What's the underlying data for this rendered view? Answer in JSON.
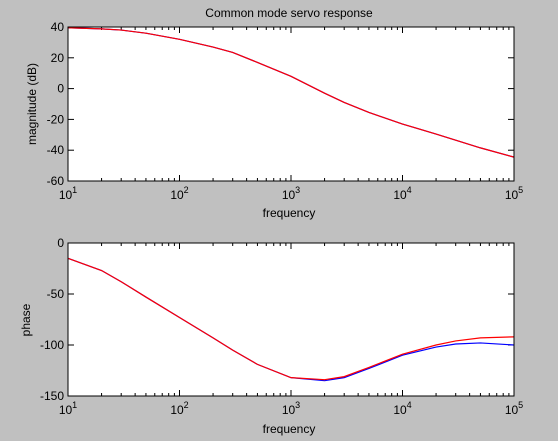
{
  "colors": {
    "background": "#c0c0c0",
    "axes": "#ffffff",
    "series_blue": "#0000ff",
    "series_red": "#ff0000"
  },
  "chart_data": [
    {
      "type": "line",
      "title": "Common mode servo response",
      "xlabel": "frequency",
      "ylabel": "magnitude (dB)",
      "xscale": "log",
      "xlim": [
        10,
        100000
      ],
      "ylim": [
        -60,
        40
      ],
      "xticks": [
        {
          "value": 10,
          "base": "10",
          "exp": "1"
        },
        {
          "value": 100,
          "base": "10",
          "exp": "2"
        },
        {
          "value": 1000,
          "base": "10",
          "exp": "3"
        },
        {
          "value": 10000,
          "base": "10",
          "exp": "4"
        },
        {
          "value": 100000,
          "base": "10",
          "exp": "5"
        }
      ],
      "yticks": [
        {
          "value": -60,
          "label": "-60"
        },
        {
          "value": -40,
          "label": "-40"
        },
        {
          "value": -20,
          "label": "-20"
        },
        {
          "value": 0,
          "label": "0"
        },
        {
          "value": 20,
          "label": "20"
        },
        {
          "value": 40,
          "label": "40"
        }
      ],
      "grid": false,
      "series": [
        {
          "color": "#0000ff",
          "x": [
            10,
            20,
            30,
            50,
            100,
            200,
            300,
            500,
            1000,
            2000,
            3000,
            5000,
            10000,
            20000,
            30000,
            50000,
            100000
          ],
          "y": [
            39.5,
            38.8,
            38,
            36,
            32,
            27,
            23.5,
            17,
            8,
            -3,
            -9,
            -15.5,
            -23,
            -29.5,
            -33.5,
            -38.5,
            -44.5
          ]
        },
        {
          "color": "#ff0000",
          "x": [
            10,
            20,
            30,
            50,
            100,
            200,
            300,
            500,
            1000,
            2000,
            3000,
            5000,
            10000,
            20000,
            30000,
            50000,
            100000
          ],
          "y": [
            39.5,
            38.8,
            38,
            36,
            32,
            27,
            23.5,
            17,
            8,
            -3,
            -9,
            -15.5,
            -23,
            -29.5,
            -33.5,
            -38.5,
            -44.5
          ]
        }
      ]
    },
    {
      "type": "line",
      "xlabel": "frequency",
      "ylabel": "phase",
      "xscale": "log",
      "xlim": [
        10,
        100000
      ],
      "ylim": [
        -150,
        0
      ],
      "xticks": [
        {
          "value": 10,
          "base": "10",
          "exp": "1"
        },
        {
          "value": 100,
          "base": "10",
          "exp": "2"
        },
        {
          "value": 1000,
          "base": "10",
          "exp": "3"
        },
        {
          "value": 10000,
          "base": "10",
          "exp": "4"
        },
        {
          "value": 100000,
          "base": "10",
          "exp": "5"
        }
      ],
      "yticks": [
        {
          "value": -150,
          "label": "-150"
        },
        {
          "value": -100,
          "label": "-100"
        },
        {
          "value": -50,
          "label": "-50"
        },
        {
          "value": 0,
          "label": "0"
        }
      ],
      "grid": false,
      "series": [
        {
          "color": "#0000ff",
          "x": [
            10,
            20,
            30,
            50,
            100,
            200,
            300,
            500,
            1000,
            2000,
            3000,
            5000,
            10000,
            20000,
            30000,
            50000,
            100000
          ],
          "y": [
            -15,
            -27,
            -38,
            -53,
            -73,
            -93,
            -105,
            -119,
            -132,
            -135,
            -132,
            -123,
            -110,
            -102,
            -99,
            -98,
            -100
          ]
        },
        {
          "color": "#ff0000",
          "x": [
            10,
            20,
            30,
            50,
            100,
            200,
            300,
            500,
            1000,
            2000,
            3000,
            5000,
            10000,
            20000,
            30000,
            50000,
            100000
          ],
          "y": [
            -15,
            -27,
            -38,
            -53,
            -73,
            -93,
            -105,
            -119,
            -132,
            -134,
            -131,
            -122,
            -109,
            -100,
            -96,
            -93,
            -92
          ]
        }
      ]
    }
  ]
}
